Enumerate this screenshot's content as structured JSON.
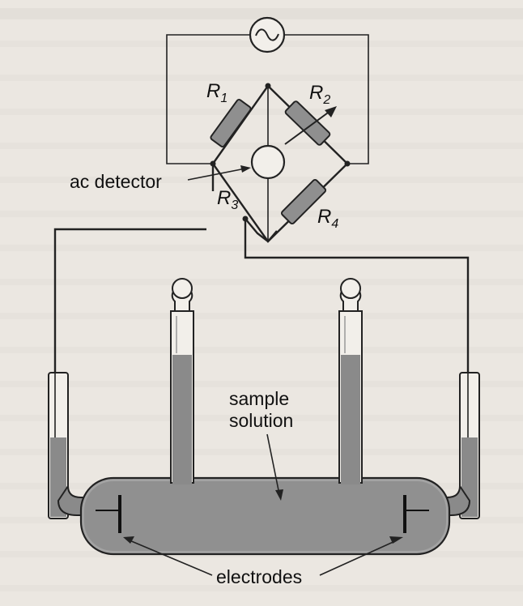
{
  "figure": {
    "labels": {
      "ac_detector": "ac detector",
      "sample_line1": "sample",
      "sample_line2": "solution",
      "electrodes": "electrodes"
    },
    "resistors": {
      "r1": {
        "letter": "R",
        "sub": "1"
      },
      "r2": {
        "letter": "R",
        "sub": "2"
      },
      "r3": {
        "letter": "R",
        "sub": "3"
      },
      "r4": {
        "letter": "R",
        "sub": "4"
      }
    },
    "icons": [
      "ac-source-icon",
      "ac-detector-icon",
      "variable-resistor-arrow-icon"
    ],
    "colors": {
      "paper": "#ebe7e1",
      "resistor_fill": "#8f8f8f",
      "solution_fill": "#8a8a8a",
      "vessel_fill": "#a3a3a3",
      "ink": "#222222"
    }
  }
}
